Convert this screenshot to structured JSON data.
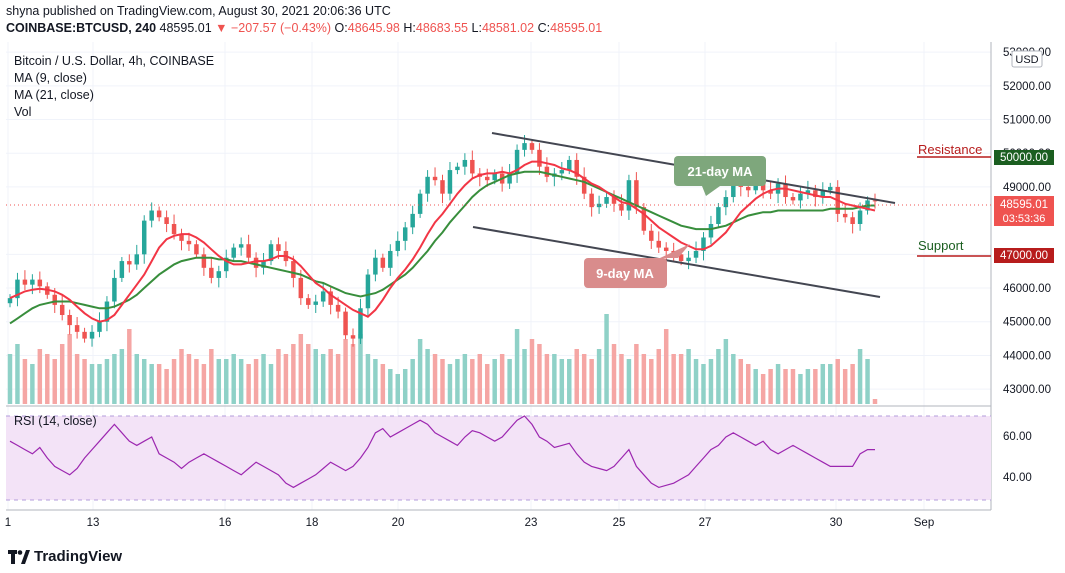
{
  "header": {
    "published": "shyna published on TradingView.com, August 30, 2021 20:06:36 UTC",
    "symbol": "COINBASE:BTCUSD, 240",
    "last": "48595.01",
    "change": "▼ −207.57 (−0.43%)",
    "o_label": "O:",
    "o": "48645.98",
    "h_label": "H:",
    "h": "48683.55",
    "l_label": "L:",
    "l": "48581.02",
    "c_label": "C:",
    "c": "48595.01"
  },
  "legend": {
    "title": "Bitcoin / U.S. Dollar, 4h, COINBASE",
    "ma9": "MA (9, close)",
    "ma21": "MA (21, close)",
    "vol": "Vol"
  },
  "currency": "USD",
  "price_label": {
    "value": "48595.01",
    "countdown": "03:53:36"
  },
  "levels": {
    "resistance_label": "Resistance",
    "resistance_value": "50000.00",
    "support_label": "Support",
    "support_value": "47000.00"
  },
  "annotations": {
    "ma21": "21-day MA",
    "ma9": "9-day MA"
  },
  "rsi": {
    "label": "RSI (14, close)",
    "ticks": [
      "60.00",
      "40.00"
    ]
  },
  "x_ticks": [
    "1",
    "13",
    "16",
    "18",
    "20",
    "23",
    "25",
    "27",
    "30",
    "Sep"
  ],
  "footer": {
    "brand": "TradingView"
  },
  "colors": {
    "up": "#26a69a",
    "down": "#ef5350",
    "ma9": "#f23645",
    "ma21": "#388e3c",
    "rsi": "#9c27b0",
    "rsi_band": "#f3e3f7"
  },
  "chart_data": {
    "type": "candlestick",
    "title": "Bitcoin / U.S. Dollar, 4h, COINBASE",
    "y_ticks": [
      "53000.00",
      "52000.00",
      "51000.00",
      "50000.00",
      "49000.00",
      "47000.00",
      "46000.00",
      "45000.00",
      "44000.00",
      "43000.00"
    ],
    "ylim": [
      42500,
      53300
    ],
    "closes": [
      45700,
      46250,
      46100,
      46250,
      46050,
      45800,
      45500,
      45200,
      44900,
      44700,
      44500,
      44700,
      45000,
      45600,
      46300,
      46800,
      46700,
      47000,
      48000,
      48300,
      48100,
      47900,
      47600,
      47400,
      47300,
      47000,
      46600,
      46300,
      46500,
      46900,
      47200,
      47300,
      46900,
      46600,
      46800,
      47300,
      47100,
      46800,
      46300,
      45700,
      45500,
      45600,
      45900,
      45500,
      45300,
      44600,
      44500,
      45400,
      46400,
      46900,
      46600,
      47100,
      47400,
      47800,
      48200,
      48800,
      49300,
      49200,
      48800,
      49500,
      49600,
      49800,
      49400,
      49300,
      49200,
      49400,
      49100,
      49400,
      50100,
      50300,
      50100,
      49600,
      49300,
      49400,
      49500,
      49800,
      49300,
      48800,
      48400,
      48500,
      48700,
      48500,
      48300,
      49200,
      48400,
      47700,
      47400,
      47200,
      47100,
      47000,
      46800,
      46900,
      47100,
      47500,
      47900,
      48400,
      48700,
      49200,
      49000,
      48900,
      49100,
      48900,
      48800,
      49100,
      48700,
      48600,
      48800,
      48900,
      48700,
      48900,
      49000,
      48200,
      48100,
      47900,
      48300,
      48600,
      48595
    ],
    "ma9": [
      45700,
      45800,
      45900,
      45950,
      45980,
      45950,
      45900,
      45800,
      45650,
      45450,
      45250,
      45100,
      45000,
      45050,
      45200,
      45500,
      45800,
      46100,
      46400,
      46800,
      47200,
      47450,
      47550,
      47600,
      47600,
      47500,
      47350,
      47150,
      46950,
      46800,
      46700,
      46700,
      46750,
      46800,
      46800,
      46850,
      46950,
      46950,
      46850,
      46650,
      46400,
      46150,
      46000,
      45800,
      45650,
      45500,
      45350,
      45250,
      45150,
      45350,
      45650,
      46000,
      46300,
      46550,
      46850,
      47200,
      47600,
      47950,
      48200,
      48500,
      48800,
      49050,
      49250,
      49350,
      49400,
      49400,
      49450,
      49400,
      49500,
      49650,
      49750,
      49750,
      49700,
      49650,
      49550,
      49500,
      49400,
      49250,
      49100,
      49000,
      48850,
      48700,
      48550,
      48500,
      48350,
      48200,
      48000,
      47800,
      47650,
      47500,
      47350,
      47250,
      47150,
      47150,
      47250,
      47450,
      47650,
      47950,
      48250,
      48450,
      48650,
      48800,
      48900,
      48950,
      48950,
      48900,
      48850,
      48800,
      48750,
      48700,
      48700,
      48600,
      48500,
      48450,
      48400,
      48350,
      48300
    ],
    "ma21": [
      44950,
      45100,
      45250,
      45400,
      45500,
      45550,
      45600,
      45600,
      45600,
      45550,
      45500,
      45450,
      45400,
      45400,
      45450,
      45550,
      45650,
      45800,
      46000,
      46200,
      46400,
      46550,
      46700,
      46800,
      46850,
      46900,
      46900,
      46900,
      46850,
      46850,
      46800,
      46800,
      46750,
      46700,
      46650,
      46600,
      46550,
      46500,
      46450,
      46400,
      46300,
      46200,
      46150,
      46050,
      45950,
      45850,
      45800,
      45750,
      45800,
      45850,
      45950,
      46100,
      46250,
      46400,
      46600,
      46850,
      47100,
      47400,
      47650,
      47950,
      48200,
      48450,
      48700,
      48900,
      49050,
      49150,
      49250,
      49350,
      49400,
      49450,
      49450,
      49450,
      49400,
      49350,
      49300,
      49250,
      49200,
      49150,
      49050,
      48950,
      48850,
      48750,
      48650,
      48550,
      48450,
      48350,
      48250,
      48150,
      48050,
      47950,
      47850,
      47800,
      47750,
      47750,
      47750,
      47800,
      47850,
      47950,
      48050,
      48150,
      48200,
      48250,
      48250,
      48300,
      48300,
      48300,
      48300,
      48300,
      48300,
      48300,
      48350,
      48350,
      48350,
      48350,
      48400,
      48450,
      48450
    ],
    "volume": [
      0.5,
      0.6,
      0.45,
      0.4,
      0.55,
      0.5,
      0.45,
      0.6,
      0.7,
      0.5,
      0.45,
      0.4,
      0.4,
      0.45,
      0.5,
      0.55,
      0.75,
      0.5,
      0.45,
      0.4,
      0.4,
      0.35,
      0.45,
      0.55,
      0.5,
      0.45,
      0.4,
      0.55,
      0.45,
      0.45,
      0.5,
      0.45,
      0.4,
      0.45,
      0.5,
      0.4,
      0.55,
      0.5,
      0.6,
      0.7,
      0.6,
      0.55,
      0.5,
      0.55,
      0.5,
      0.65,
      0.6,
      0.7,
      0.5,
      0.45,
      0.4,
      0.35,
      0.3,
      0.35,
      0.45,
      0.65,
      0.55,
      0.5,
      0.45,
      0.4,
      0.45,
      0.5,
      0.45,
      0.5,
      0.4,
      0.45,
      0.5,
      0.45,
      0.75,
      0.55,
      0.65,
      0.6,
      0.5,
      0.5,
      0.45,
      0.45,
      0.55,
      0.5,
      0.45,
      0.55,
      0.9,
      0.6,
      0.5,
      0.45,
      0.6,
      0.5,
      0.45,
      0.55,
      0.75,
      0.5,
      0.5,
      0.55,
      0.45,
      0.4,
      0.45,
      0.55,
      0.65,
      0.5,
      0.45,
      0.4,
      0.35,
      0.3,
      0.35,
      0.4,
      0.35,
      0.35,
      0.3,
      0.35,
      0.35,
      0.4,
      0.4,
      0.45,
      0.35,
      0.4,
      0.55,
      0.45,
      0.05
    ],
    "rsi": [
      58,
      56,
      54,
      52,
      55,
      50,
      46,
      44,
      42,
      45,
      50,
      54,
      58,
      62,
      66,
      62,
      58,
      56,
      58,
      60,
      52,
      50,
      48,
      45,
      48,
      50,
      52,
      50,
      48,
      46,
      44,
      42,
      45,
      48,
      46,
      44,
      42,
      38,
      36,
      38,
      40,
      42,
      45,
      48,
      46,
      44,
      46,
      50,
      55,
      62,
      64,
      60,
      62,
      64,
      66,
      68,
      66,
      62,
      60,
      58,
      56,
      60,
      63,
      62,
      60,
      58,
      60,
      64,
      68,
      70,
      66,
      60,
      58,
      55,
      56,
      57,
      52,
      48,
      46,
      45,
      44,
      46,
      50,
      54,
      46,
      42,
      38,
      36,
      37,
      38,
      40,
      42,
      46,
      50,
      54,
      56,
      60,
      62,
      60,
      58,
      56,
      58,
      54,
      52,
      54,
      56,
      54,
      52,
      50,
      48,
      46,
      46,
      46,
      46,
      52,
      54,
      54
    ]
  }
}
